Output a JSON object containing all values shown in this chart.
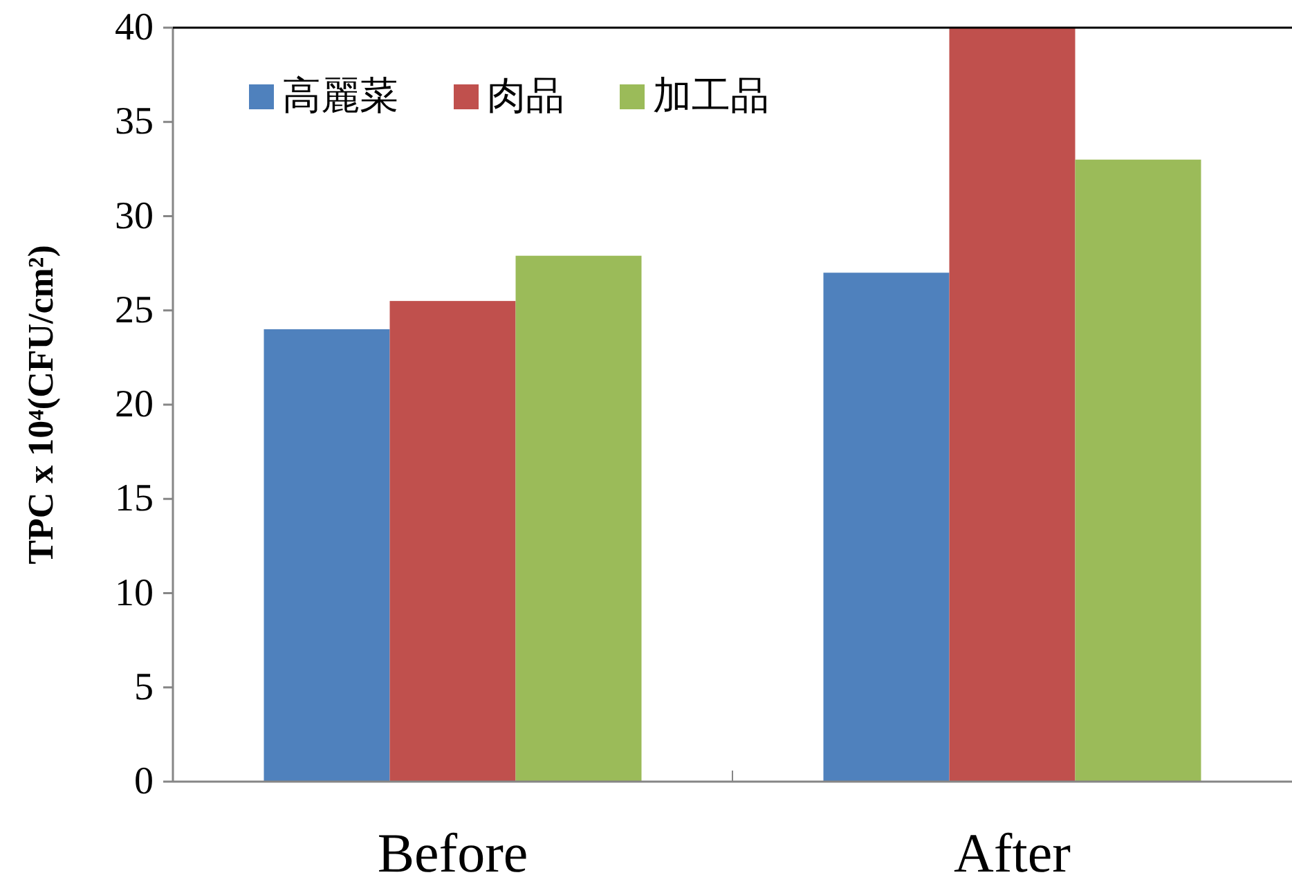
{
  "chart_data": {
    "type": "bar",
    "ylabel": "TPC x 10⁴(CFU/cm²)",
    "categories": [
      "Before",
      "After"
    ],
    "series": [
      {
        "name": "高麗菜",
        "color": "#4f81bd",
        "values": [
          24,
          27
        ]
      },
      {
        "name": "肉品",
        "color": "#c0504d",
        "values": [
          25.5,
          40
        ]
      },
      {
        "name": "加工品",
        "color": "#9bbb59",
        "values": [
          27.9,
          33
        ]
      }
    ],
    "ylim": [
      0,
      40
    ],
    "yticks": [
      0,
      5,
      10,
      15,
      20,
      25,
      30,
      35,
      40
    ],
    "grid": false,
    "legend": "top left"
  }
}
